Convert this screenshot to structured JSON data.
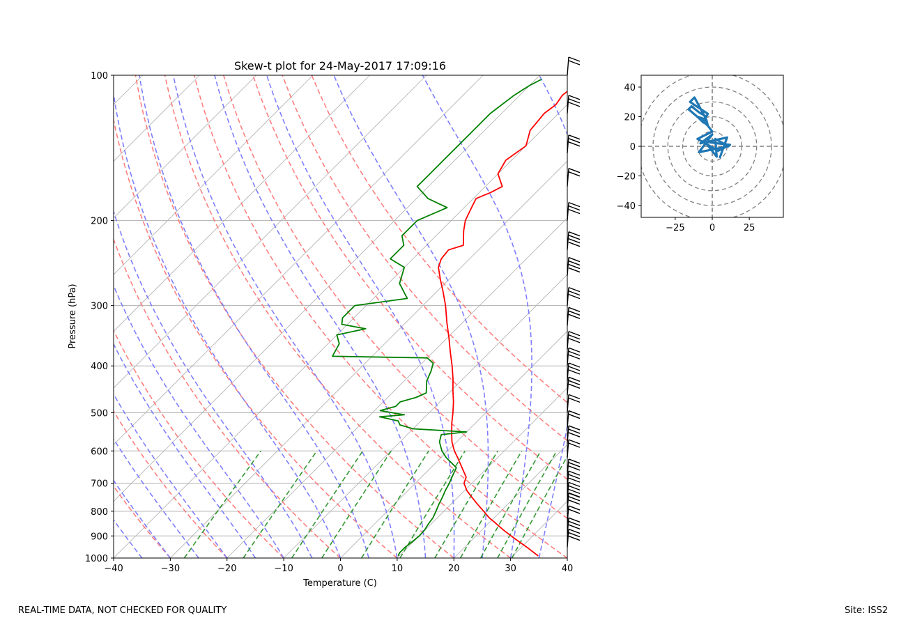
{
  "chart_data": [
    {
      "type": "line",
      "subtype": "skew-t",
      "title": "Skew-t plot for 24-May-2017 17:09:16",
      "xlabel": "Temperature (C)",
      "ylabel": "Pressure (hPa)",
      "xlim": [
        -40,
        40
      ],
      "ylim": [
        1000,
        100
      ],
      "xticks": [
        -40,
        -30,
        -20,
        -10,
        0,
        10,
        20,
        30,
        40
      ],
      "yticks": [
        100,
        200,
        300,
        400,
        500,
        600,
        700,
        800,
        900,
        1000
      ],
      "grid": true,
      "colors": {
        "temperature": "#ff0000",
        "dewpoint": "#008000",
        "dry_adiabat": "#ff7f7f",
        "moist_adiabat": "#7f7fff",
        "mixing_ratio": "#339933",
        "isotherm": "#b0b0b0"
      },
      "series": [
        {
          "name": "Temperature",
          "color": "#ff0000",
          "points": [
            [
              990,
              34.5
            ],
            [
              975,
              33.2
            ],
            [
              950,
              31.0
            ],
            [
              925,
              28.6
            ],
            [
              900,
              26.2
            ],
            [
              875,
              23.8
            ],
            [
              850,
              21.5
            ],
            [
              825,
              19.1
            ],
            [
              800,
              17.0
            ],
            [
              775,
              14.8
            ],
            [
              750,
              12.6
            ],
            [
              725,
              10.4
            ],
            [
              700,
              8.6
            ],
            [
              680,
              7.9
            ],
            [
              650,
              5.5
            ],
            [
              620,
              3.0
            ],
            [
              600,
              1.2
            ],
            [
              575,
              -0.8
            ],
            [
              550,
              -2.5
            ],
            [
              525,
              -4.2
            ],
            [
              500,
              -5.8
            ],
            [
              475,
              -7.6
            ],
            [
              450,
              -9.7
            ],
            [
              425,
              -11.8
            ],
            [
              400,
              -14.2
            ],
            [
              375,
              -16.9
            ],
            [
              350,
              -19.7
            ],
            [
              325,
              -22.8
            ],
            [
              300,
              -26.0
            ],
            [
              280,
              -29.0
            ],
            [
              265,
              -31.5
            ],
            [
              250,
              -34.0
            ],
            [
              240,
              -35.0
            ],
            [
              230,
              -35.3
            ],
            [
              225,
              -33.5
            ],
            [
              210,
              -36.0
            ],
            [
              200,
              -37.5
            ],
            [
              190,
              -38.5
            ],
            [
              180,
              -39.5
            ],
            [
              175,
              -38.0
            ],
            [
              170,
              -37.0
            ],
            [
              160,
              -40.0
            ],
            [
              150,
              -41.0
            ],
            [
              140,
              -40.0
            ],
            [
              130,
              -42.0
            ],
            [
              120,
              -42.5
            ],
            [
              115,
              -42.0
            ],
            [
              110,
              -42.5
            ],
            [
              105,
              -42.0
            ],
            [
              102,
              -42.5
            ]
          ]
        },
        {
          "name": "Dewpoint",
          "color": "#008000",
          "points": [
            [
              990,
              9.8
            ],
            [
              975,
              9.5
            ],
            [
              950,
              9.5
            ],
            [
              925,
              9.8
            ],
            [
              900,
              10.0
            ],
            [
              875,
              9.9
            ],
            [
              850,
              9.5
            ],
            [
              825,
              9.2
            ],
            [
              800,
              8.6
            ],
            [
              775,
              7.9
            ],
            [
              750,
              7.3
            ],
            [
              725,
              6.6
            ],
            [
              700,
              6.0
            ],
            [
              680,
              5.4
            ],
            [
              650,
              4.5
            ],
            [
              620,
              1.0
            ],
            [
              600,
              -1.0
            ],
            [
              575,
              -3.0
            ],
            [
              555,
              -4.0
            ],
            [
              548,
              0.0
            ],
            [
              540,
              -10.0
            ],
            [
              530,
              -13.0
            ],
            [
              520,
              -14.0
            ],
            [
              510,
              -18.0
            ],
            [
              505,
              -14.0
            ],
            [
              495,
              -19.0
            ],
            [
              485,
              -17.0
            ],
            [
              475,
              -17.0
            ],
            [
              465,
              -15.0
            ],
            [
              455,
              -14.0
            ],
            [
              430,
              -16.0
            ],
            [
              410,
              -17.0
            ],
            [
              395,
              -18.0
            ],
            [
              385,
              -20.0
            ],
            [
              382,
              -37.0
            ],
            [
              360,
              -38.0
            ],
            [
              345,
              -40.0
            ],
            [
              335,
              -36.0
            ],
            [
              328,
              -41.0
            ],
            [
              318,
              -42.0
            ],
            [
              300,
              -42.0
            ],
            [
              290,
              -34.0
            ],
            [
              270,
              -38.0
            ],
            [
              250,
              -40.0
            ],
            [
              240,
              -44.0
            ],
            [
              225,
              -44.0
            ],
            [
              215,
              -46.0
            ],
            [
              200,
              -46.0
            ],
            [
              188,
              -43.0
            ],
            [
              180,
              -48.0
            ],
            [
              170,
              -52.0
            ],
            [
              160,
              -52.0
            ],
            [
              150,
              -52.0
            ],
            [
              140,
              -52.0
            ],
            [
              130,
              -52.0
            ],
            [
              120,
              -52.0
            ],
            [
              110,
              -51.0
            ],
            [
              105,
              -50.0
            ],
            [
              102,
              -49.0
            ]
          ]
        }
      ],
      "wind_barbs": {
        "color": "#000000",
        "pressures": [
          100,
          120,
          145,
          170,
          200,
          230,
          260,
          300,
          330,
          370,
          400,
          430,
          460,
          500,
          540,
          580,
          620,
          680,
          720,
          760,
          800,
          850,
          900,
          950
        ],
        "speed_kt": [
          20,
          25,
          25,
          20,
          30,
          35,
          35,
          25,
          30,
          30,
          25,
          30,
          25,
          20,
          20,
          25,
          20,
          30,
          30,
          35,
          25,
          20,
          25,
          30
        ]
      },
      "annotations": {
        "footer_left": "REAL-TIME DATA, NOT CHECKED FOR QUALITY",
        "footer_right": "Site: ISS2"
      }
    },
    {
      "type": "line",
      "subtype": "hodograph",
      "title": "",
      "xlim": [
        -48,
        48
      ],
      "ylim": [
        -48,
        48
      ],
      "xticks": [
        -25,
        0,
        25
      ],
      "yticks": [
        -40,
        -20,
        0,
        20,
        40
      ],
      "ring_radii": [
        10,
        20,
        30,
        40,
        50
      ],
      "color": "#1f77b4",
      "u": [
        5,
        10,
        -8,
        0,
        -9,
        11,
        2,
        3,
        -5,
        12,
        4,
        -10,
        0,
        -3,
        -4,
        -10,
        -6,
        -3,
        -15,
        -12,
        -5,
        -3,
        -16,
        -14,
        -9,
        -4,
        -6
      ],
      "v": [
        -8,
        6,
        2,
        8,
        -4,
        0,
        5,
        -7,
        3,
        1,
        -3,
        5,
        10,
        14,
        18,
        20,
        16,
        22,
        30,
        33,
        20,
        14,
        25,
        27,
        23,
        20,
        17
      ]
    }
  ]
}
